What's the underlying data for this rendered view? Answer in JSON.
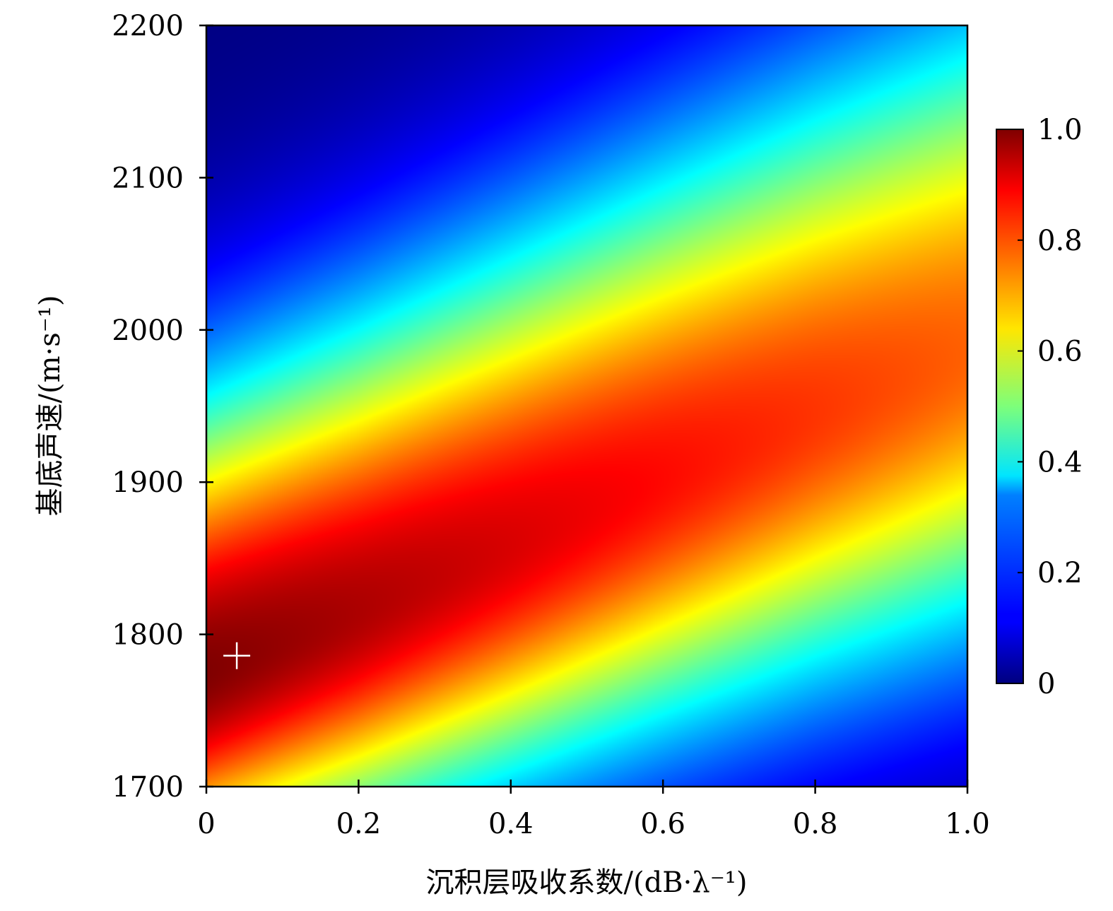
{
  "chart_data": {
    "type": "heatmap",
    "title": "",
    "xlabel": "沉积层吸收系数/(dB·λ⁻¹)",
    "ylabel": "基底声速/(m·s⁻¹)",
    "xlim": [
      0,
      1.0
    ],
    "ylim": [
      1700,
      2200
    ],
    "x_ticks": [
      "0",
      "0.2",
      "0.4",
      "0.6",
      "0.8",
      "1.0"
    ],
    "y_ticks": [
      "1700",
      "1800",
      "1900",
      "2000",
      "2100",
      "2200"
    ],
    "x_tick_values": [
      0,
      0.2,
      0.4,
      0.6,
      0.8,
      1.0
    ],
    "y_tick_values": [
      1700,
      1800,
      1900,
      2000,
      2100,
      2200
    ],
    "colorbar": {
      "range": [
        0,
        1.0
      ],
      "ticks": [
        "0",
        "0.2",
        "0.4",
        "0.6",
        "0.8",
        "1.0"
      ],
      "tick_values": [
        0,
        0.2,
        0.4,
        0.6,
        0.8,
        1.0
      ],
      "colormap": "jet"
    },
    "ridge": {
      "description_values": "peak sound speed vs absorption coefficient",
      "x": [
        0,
        0.2,
        0.4,
        0.6,
        0.8,
        1.0
      ],
      "y": [
        1775,
        1815,
        1858,
        1902,
        1945,
        1985
      ]
    },
    "marker": {
      "x": 0.04,
      "y": 1786,
      "symbol": "+",
      "color": "#ffffff"
    },
    "grid": false
  }
}
